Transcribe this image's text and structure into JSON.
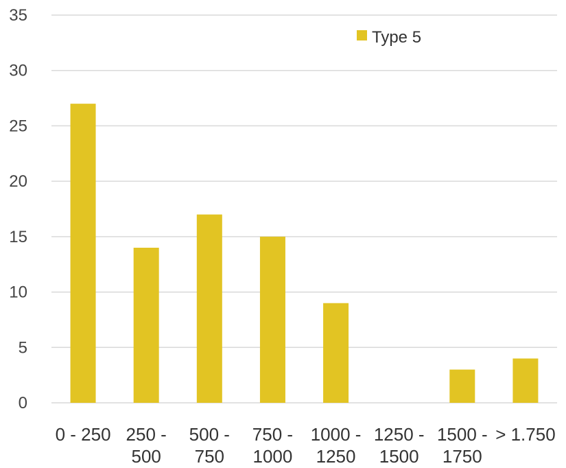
{
  "chart_data": {
    "type": "bar",
    "categories": [
      [
        "0 - 250"
      ],
      [
        "250 -",
        "500"
      ],
      [
        "500 -",
        "750"
      ],
      [
        "750 -",
        "1000"
      ],
      [
        "1000 -",
        "1250"
      ],
      [
        "1250 -",
        "1500"
      ],
      [
        "1500 -",
        "1750"
      ],
      [
        "> 1.750"
      ]
    ],
    "series": [
      {
        "name": "Type 5",
        "values": [
          27,
          14,
          17,
          15,
          9,
          0,
          3,
          4
        ]
      }
    ],
    "ylim": [
      0,
      35
    ],
    "yticks": [
      "0",
      "5",
      "10",
      "15",
      "20",
      "25",
      "30",
      "35"
    ],
    "grid": true,
    "legend_position": "top-right",
    "colors": {
      "bar": "#e2c423",
      "grid": "#d9d9d9",
      "text": "#333333"
    }
  }
}
